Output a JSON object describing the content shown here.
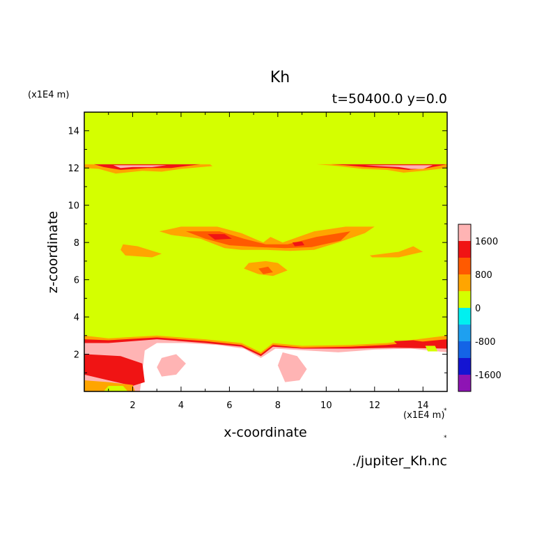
{
  "chart_data": {
    "type": "heatmap",
    "title": "Kh",
    "subtitle": "t=50400.0 y=0.0",
    "xlabel": "x-coordinate",
    "ylabel": "z-coordinate",
    "x_unit_label": "(x1E4 m)",
    "y_unit_label": "(x1E4 m)",
    "xlim": [
      0,
      15
    ],
    "ylim": [
      0,
      15
    ],
    "x_ticks": [
      2,
      4,
      6,
      8,
      10,
      12,
      14
    ],
    "y_ticks": [
      2,
      4,
      6,
      8,
      10,
      12,
      14
    ],
    "colorbar": {
      "levels": [
        -2000,
        -1600,
        -1200,
        -800,
        -400,
        0,
        400,
        800,
        1200,
        1600,
        2000
      ],
      "colors": [
        "#8e14b4",
        "#1414d2",
        "#1464e6",
        "#1ea0f0",
        "#00f0f0",
        "#d4ff00",
        "#ffa500",
        "#ff5a00",
        "#f01414",
        "#ffb4b4"
      ],
      "tick_labels": [
        {
          "value": -1600,
          "label": "-1600"
        },
        {
          "value": -800,
          "label": "-800"
        },
        {
          "value": 0,
          "label": "0"
        },
        {
          "value": 800,
          "label": "800"
        },
        {
          "value": 1600,
          "label": "1600"
        }
      ]
    },
    "background_value_color": "#d4ff00",
    "high_value_color": "#ffffff",
    "regions": [
      {
        "name": "upper-band-left-outer",
        "color": "#ffa500",
        "points": [
          [
            0,
            12.2
          ],
          [
            5.2,
            12.2
          ],
          [
            5.3,
            12.1
          ],
          [
            4.0,
            11.95
          ],
          [
            3.2,
            11.8
          ],
          [
            2.4,
            11.85
          ],
          [
            1.3,
            11.7
          ],
          [
            0.6,
            11.95
          ],
          [
            0,
            12.0
          ]
        ]
      },
      {
        "name": "upper-band-left-red",
        "color": "#f01414",
        "points": [
          [
            0.4,
            12.2
          ],
          [
            4.8,
            12.2
          ],
          [
            3.6,
            12.0
          ],
          [
            2.6,
            12.0
          ],
          [
            1.5,
            11.9
          ],
          [
            0.8,
            12.05
          ]
        ]
      },
      {
        "name": "upper-band-left-pink",
        "color": "#ffb4b4",
        "points": [
          [
            1.2,
            12.15
          ],
          [
            3.4,
            12.15
          ],
          [
            2.8,
            12.05
          ],
          [
            2.0,
            12.05
          ],
          [
            1.5,
            12.0
          ]
        ]
      },
      {
        "name": "upper-band-right-outer",
        "color": "#ffa500",
        "points": [
          [
            9.6,
            12.2
          ],
          [
            15,
            12.2
          ],
          [
            15,
            12.0
          ],
          [
            14.0,
            11.85
          ],
          [
            13.2,
            11.75
          ],
          [
            12.5,
            11.9
          ],
          [
            11.5,
            11.95
          ],
          [
            10.5,
            12.1
          ]
        ]
      },
      {
        "name": "upper-band-right-red",
        "color": "#f01414",
        "points": [
          [
            10.2,
            12.2
          ],
          [
            15,
            12.2
          ],
          [
            14.2,
            12.0
          ],
          [
            13.4,
            11.9
          ],
          [
            12.6,
            12.0
          ],
          [
            11.6,
            12.05
          ],
          [
            10.8,
            12.15
          ]
        ]
      },
      {
        "name": "upper-band-right-pink",
        "color": "#ffb4b4",
        "points": [
          [
            11.6,
            12.15
          ],
          [
            14.4,
            12.15
          ],
          [
            14.0,
            11.95
          ],
          [
            13.5,
            11.95
          ],
          [
            13.0,
            12.05
          ],
          [
            12.2,
            12.1
          ]
        ]
      },
      {
        "name": "mid-wing-outer",
        "color": "#ffa500",
        "points": [
          [
            3.1,
            8.6
          ],
          [
            4.0,
            8.85
          ],
          [
            5.5,
            8.85
          ],
          [
            6.5,
            8.5
          ],
          [
            7.4,
            8.0
          ],
          [
            7.7,
            8.3
          ],
          [
            8.2,
            8.0
          ],
          [
            9.5,
            8.6
          ],
          [
            10.8,
            8.85
          ],
          [
            12.0,
            8.85
          ],
          [
            11.6,
            8.5
          ],
          [
            10.5,
            8.0
          ],
          [
            9.5,
            7.6
          ],
          [
            8.5,
            7.55
          ],
          [
            7.5,
            7.6
          ],
          [
            6.5,
            7.6
          ],
          [
            5.8,
            7.7
          ],
          [
            4.8,
            8.2
          ],
          [
            3.6,
            8.4
          ]
        ]
      },
      {
        "name": "mid-wing-red",
        "color": "#ff5a00",
        "points": [
          [
            4.2,
            8.6
          ],
          [
            5.6,
            8.6
          ],
          [
            6.6,
            8.2
          ],
          [
            7.5,
            7.9
          ],
          [
            8.4,
            7.9
          ],
          [
            9.6,
            8.3
          ],
          [
            11.0,
            8.6
          ],
          [
            10.6,
            8.1
          ],
          [
            9.4,
            7.75
          ],
          [
            8.3,
            7.7
          ],
          [
            7.2,
            7.75
          ],
          [
            6.0,
            7.85
          ],
          [
            5.0,
            8.2
          ]
        ]
      },
      {
        "name": "mid-wing-spot-left",
        "color": "#f01414",
        "points": [
          [
            5.1,
            8.45
          ],
          [
            5.8,
            8.45
          ],
          [
            6.1,
            8.2
          ],
          [
            5.4,
            8.15
          ]
        ]
      },
      {
        "name": "mid-wing-spot-right",
        "color": "#f01414",
        "points": [
          [
            8.6,
            8.0
          ],
          [
            9.0,
            8.05
          ],
          [
            9.1,
            7.85
          ],
          [
            8.7,
            7.8
          ]
        ]
      },
      {
        "name": "side-blob-left",
        "color": "#ffa500",
        "points": [
          [
            1.6,
            7.9
          ],
          [
            2.2,
            7.8
          ],
          [
            3.2,
            7.4
          ],
          [
            2.8,
            7.2
          ],
          [
            1.7,
            7.3
          ],
          [
            1.5,
            7.6
          ]
        ]
      },
      {
        "name": "side-blob-right",
        "color": "#ffa500",
        "points": [
          [
            11.8,
            7.3
          ],
          [
            13.0,
            7.5
          ],
          [
            13.6,
            7.8
          ],
          [
            14.0,
            7.5
          ],
          [
            13.0,
            7.2
          ],
          [
            11.9,
            7.2
          ]
        ]
      },
      {
        "name": "mid-blob-center",
        "color": "#ffa500",
        "points": [
          [
            6.8,
            6.9
          ],
          [
            7.5,
            7.0
          ],
          [
            8.0,
            6.9
          ],
          [
            8.4,
            6.5
          ],
          [
            7.8,
            6.2
          ],
          [
            7.2,
            6.3
          ],
          [
            6.6,
            6.6
          ]
        ]
      },
      {
        "name": "mid-blob-center-red",
        "color": "#ff5a00",
        "points": [
          [
            7.2,
            6.6
          ],
          [
            7.6,
            6.7
          ],
          [
            7.8,
            6.4
          ],
          [
            7.4,
            6.3
          ]
        ]
      },
      {
        "name": "bottom-outer-orange",
        "color": "#ffa500",
        "points": [
          [
            0,
            0
          ],
          [
            15,
            0
          ],
          [
            15,
            3.0
          ],
          [
            12.5,
            2.6
          ],
          [
            11,
            2.5
          ],
          [
            9,
            2.45
          ],
          [
            7.8,
            2.6
          ],
          [
            7.3,
            2.1
          ],
          [
            6.5,
            2.6
          ],
          [
            5,
            2.8
          ],
          [
            3,
            3.0
          ],
          [
            1,
            2.85
          ],
          [
            0,
            3.0
          ]
        ]
      },
      {
        "name": "bottom-red",
        "color": "#f01414",
        "points": [
          [
            0,
            0
          ],
          [
            15,
            0
          ],
          [
            15,
            2.8
          ],
          [
            12.5,
            2.5
          ],
          [
            11,
            2.4
          ],
          [
            9,
            2.35
          ],
          [
            7.8,
            2.5
          ],
          [
            7.3,
            2.0
          ],
          [
            6.5,
            2.5
          ],
          [
            5,
            2.7
          ],
          [
            3,
            2.9
          ],
          [
            1,
            2.75
          ],
          [
            0,
            2.8
          ]
        ]
      },
      {
        "name": "bottom-pink",
        "color": "#ffb4b4",
        "points": [
          [
            0,
            0
          ],
          [
            15,
            0
          ],
          [
            15,
            2.3
          ],
          [
            12.8,
            2.35
          ],
          [
            11,
            2.3
          ],
          [
            9,
            2.3
          ],
          [
            7.8,
            2.4
          ],
          [
            7.3,
            1.9
          ],
          [
            6.5,
            2.4
          ],
          [
            5,
            2.6
          ],
          [
            3,
            2.8
          ],
          [
            1,
            2.6
          ],
          [
            0,
            2.6
          ]
        ]
      },
      {
        "name": "bottom-white",
        "color": "#ffffff",
        "points": [
          [
            2.3,
            0
          ],
          [
            15,
            0
          ],
          [
            15,
            2.1
          ],
          [
            13.5,
            2.3
          ],
          [
            12,
            2.25
          ],
          [
            10.5,
            2.1
          ],
          [
            9.2,
            2.2
          ],
          [
            7.9,
            2.3
          ],
          [
            7.3,
            1.8
          ],
          [
            6.6,
            2.3
          ],
          [
            5.5,
            2.5
          ],
          [
            4.2,
            2.6
          ],
          [
            3.0,
            2.6
          ],
          [
            2.5,
            2.2
          ],
          [
            2.4,
            1.0
          ]
        ]
      },
      {
        "name": "bottom-pink-island-1",
        "color": "#ffb4b4",
        "points": [
          [
            3.2,
            1.8
          ],
          [
            3.8,
            2.0
          ],
          [
            4.2,
            1.5
          ],
          [
            3.8,
            0.9
          ],
          [
            3.2,
            0.8
          ],
          [
            3.0,
            1.3
          ]
        ]
      },
      {
        "name": "bottom-pink-island-2",
        "color": "#ffb4b4",
        "points": [
          [
            8.2,
            2.1
          ],
          [
            8.8,
            1.9
          ],
          [
            9.2,
            1.2
          ],
          [
            8.9,
            0.6
          ],
          [
            8.3,
            0.5
          ],
          [
            8.0,
            1.4
          ]
        ]
      },
      {
        "name": "bottom-left-red-core",
        "color": "#f01414",
        "points": [
          [
            0,
            2.0
          ],
          [
            1.5,
            1.9
          ],
          [
            2.4,
            1.5
          ],
          [
            2.5,
            0.5
          ],
          [
            2.0,
            0.3
          ],
          [
            1.0,
            0.6
          ],
          [
            0,
            0.9
          ]
        ]
      },
      {
        "name": "bottom-left-orange",
        "color": "#ffa500",
        "points": [
          [
            0,
            0
          ],
          [
            2.1,
            0
          ],
          [
            2.0,
            0.35
          ],
          [
            1.0,
            0.5
          ],
          [
            0,
            0.6
          ]
        ]
      },
      {
        "name": "bottom-left-yellow",
        "color": "#d4ff00",
        "points": [
          [
            0.8,
            0
          ],
          [
            1.8,
            0
          ],
          [
            1.6,
            0.3
          ],
          [
            1.0,
            0.3
          ]
        ]
      },
      {
        "name": "bottom-right-red",
        "color": "#f01414",
        "points": [
          [
            12.8,
            2.7
          ],
          [
            13.6,
            2.75
          ],
          [
            14.4,
            2.6
          ],
          [
            13.8,
            2.4
          ],
          [
            13.0,
            2.45
          ]
        ]
      },
      {
        "name": "bottom-right-yellow",
        "color": "#d4ff00",
        "points": [
          [
            14.1,
            2.45
          ],
          [
            14.5,
            2.45
          ],
          [
            14.6,
            2.15
          ],
          [
            14.2,
            2.15
          ]
        ]
      }
    ]
  },
  "axis_readouts": {
    "tick_marker_1": "*",
    "tick_marker_2": "*"
  }
}
